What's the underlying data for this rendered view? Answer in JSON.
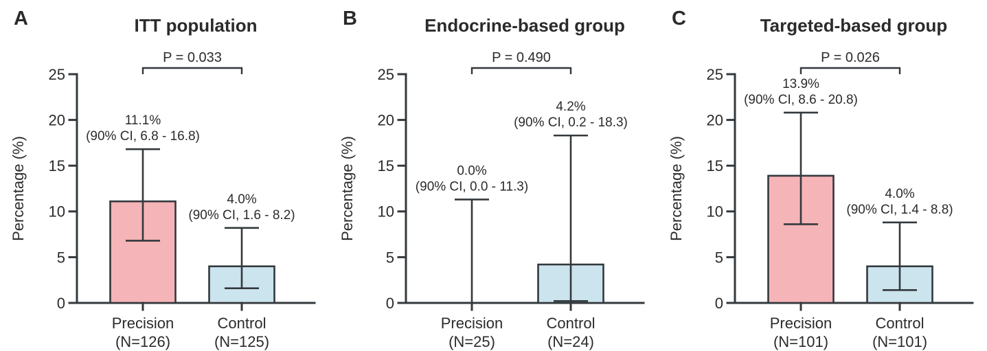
{
  "figure": {
    "background_color": "#ffffff",
    "line_color": "#33383c",
    "text_color": "#2b2b2b",
    "series_colors": {
      "Precision": "#f5b4b7",
      "Control": "#cbe4ee"
    },
    "legend": "none",
    "grid": false
  },
  "chart_data": [
    {
      "type": "bar",
      "panel_letter": "A",
      "title": "ITT population",
      "comparison": {
        "p_label": "P = 0.033"
      },
      "ylabel": "Percentage (%)",
      "ylim": [
        0,
        25
      ],
      "yticks": [
        0,
        5,
        10,
        15,
        20,
        25
      ],
      "bars": [
        {
          "category": "Precision",
          "n_label": "(N=126)",
          "series": "Precision",
          "value": 11.1,
          "ci_low": 6.8,
          "ci_high": 16.8,
          "value_label": "11.1%",
          "ci_label": "(90% CI, 6.8 - 16.8)"
        },
        {
          "category": "Control",
          "n_label": "(N=125)",
          "series": "Control",
          "value": 4.0,
          "ci_low": 1.6,
          "ci_high": 8.2,
          "value_label": "4.0%",
          "ci_label": "(90% CI, 1.6 - 8.2)"
        }
      ]
    },
    {
      "type": "bar",
      "panel_letter": "B",
      "title": "Endocrine-based group",
      "comparison": {
        "p_label": "P = 0.490"
      },
      "ylabel": "Percentage (%)",
      "ylim": [
        0,
        25
      ],
      "yticks": [
        0,
        5,
        10,
        15,
        20,
        25
      ],
      "bars": [
        {
          "category": "Precision",
          "n_label": "(N=25)",
          "series": "Precision",
          "value": 0.0,
          "ci_low": 0.0,
          "ci_high": 11.3,
          "value_label": "0.0%",
          "ci_label": "(90% CI, 0.0 - 11.3)"
        },
        {
          "category": "Control",
          "n_label": "(N=24)",
          "series": "Control",
          "value": 4.2,
          "ci_low": 0.2,
          "ci_high": 18.3,
          "value_label": "4.2%",
          "ci_label": "(90% CI, 0.2 - 18.3)"
        }
      ]
    },
    {
      "type": "bar",
      "panel_letter": "C",
      "title": "Targeted-based group",
      "comparison": {
        "p_label": "P = 0.026"
      },
      "ylabel": "Percentage (%)",
      "ylim": [
        0,
        25
      ],
      "yticks": [
        0,
        5,
        10,
        15,
        20,
        25
      ],
      "bars": [
        {
          "category": "Precision",
          "n_label": "(N=101)",
          "series": "Precision",
          "value": 13.9,
          "ci_low": 8.6,
          "ci_high": 20.8,
          "value_label": "13.9%",
          "ci_label": "(90% CI, 8.6 - 20.8)"
        },
        {
          "category": "Control",
          "n_label": "(N=101)",
          "series": "Control",
          "value": 4.0,
          "ci_low": 1.4,
          "ci_high": 8.8,
          "value_label": "4.0%",
          "ci_label": "(90% CI, 1.4 - 8.8)"
        }
      ]
    }
  ]
}
